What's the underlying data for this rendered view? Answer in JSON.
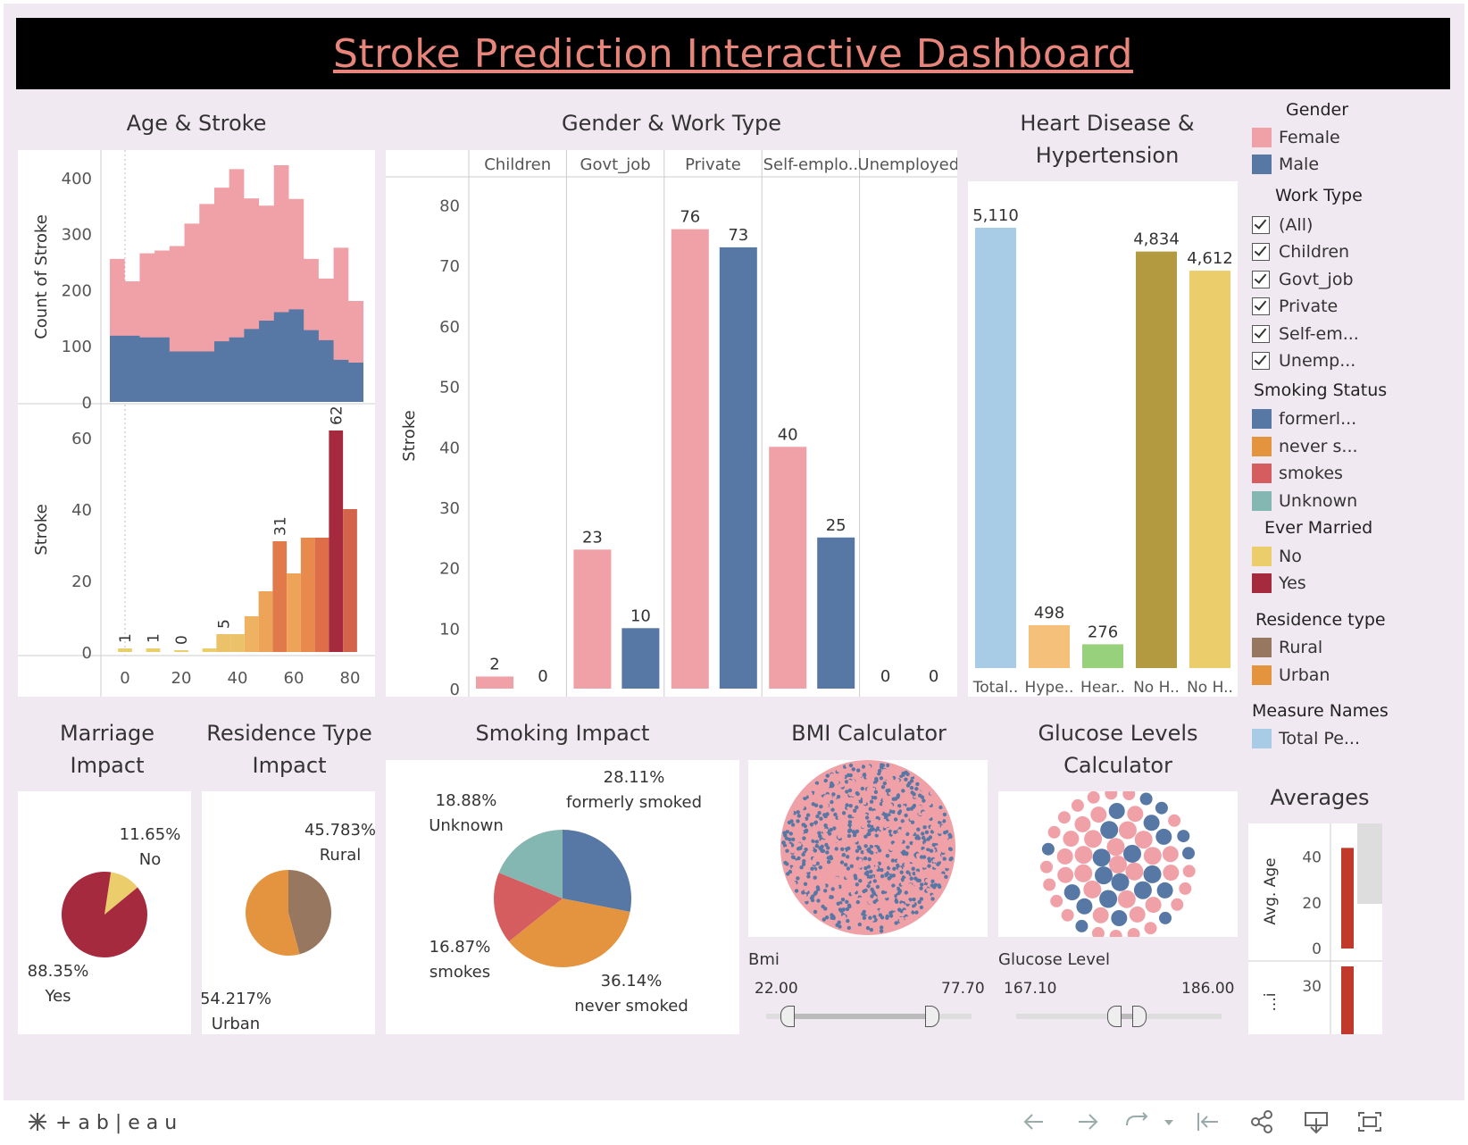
{
  "title": "Stroke Prediction Interactive Dashboard",
  "headings": {
    "age_stroke": "Age & Stroke",
    "gender_work": "Gender & Work Type",
    "heart": "Heart Disease & Hypertension",
    "marriage": "Marriage Impact",
    "residence": "Residence Type Impact",
    "smoking": "Smoking Impact",
    "bmi": "BMI Calculator",
    "glucose": "Glucose Levels Calculator",
    "averages": "Averages"
  },
  "colors": {
    "female": "#f0a1a8",
    "male": "#5777a5",
    "formerly": "#5777a5",
    "never": "#e4943f",
    "smokes": "#d65d5f",
    "unknown": "#84b7b1",
    "married_no": "#ebce6b",
    "married_yes": "#a52a3e",
    "rural": "#987760",
    "urban": "#e4943f",
    "total": "#a8cbe6"
  },
  "legend": {
    "gender": {
      "title": "Gender",
      "items": [
        "Female",
        "Male"
      ]
    },
    "work": {
      "title": "Work Type",
      "items": [
        "(All)",
        "Children",
        "Govt_job",
        "Private",
        "Self-em...",
        "Unemp..."
      ]
    },
    "smoking": {
      "title": "Smoking Status",
      "items": [
        "formerl...",
        "never s...",
        "smokes",
        "Unknown"
      ]
    },
    "married": {
      "title": "Ever Married",
      "items": [
        "No",
        "Yes"
      ]
    },
    "residence": {
      "title": "Residence type",
      "items": [
        "Rural",
        "Urban"
      ]
    },
    "measure": {
      "title": "Measure Names",
      "items": [
        "Total Pe..."
      ]
    }
  },
  "bmi": {
    "label": "Bmi",
    "min": "22.00",
    "max": "77.70"
  },
  "glucose": {
    "label": "Glucose Level",
    "min": "167.10",
    "max": "186.00"
  },
  "brand": "+ a b | e a u",
  "chart_data": [
    {
      "id": "age-area",
      "type": "area",
      "ylabel": "Count of Stroke",
      "ylim": [
        0,
        430
      ],
      "yticks": [
        0,
        100,
        200,
        300,
        400
      ],
      "x": [
        0,
        5,
        10,
        15,
        20,
        25,
        30,
        35,
        40,
        45,
        50,
        55,
        60,
        65,
        70,
        75,
        80
      ],
      "series": [
        {
          "name": "Female",
          "values": [
            255,
            215,
            265,
            270,
            278,
            318,
            353,
            382,
            415,
            363,
            350,
            422,
            362,
            255,
            220,
            275,
            180
          ]
        },
        {
          "name": "Male",
          "values": [
            118,
            118,
            115,
            115,
            90,
            90,
            90,
            108,
            115,
            130,
            145,
            160,
            165,
            128,
            110,
            75,
            70
          ]
        }
      ]
    },
    {
      "id": "age-bars",
      "type": "bar",
      "ylabel": "Stroke",
      "ylim": [
        0,
        68
      ],
      "yticks": [
        0,
        20,
        40,
        60
      ],
      "xticks": [
        0,
        20,
        40,
        60,
        80
      ],
      "bins": [
        {
          "x": 0,
          "value": 1,
          "label": "1",
          "color": "#ebce6b"
        },
        {
          "x": 10,
          "value": 1,
          "label": "1",
          "color": "#ebce6b"
        },
        {
          "x": 20,
          "value": 0,
          "label": "0",
          "color": "#ebce6b"
        },
        {
          "x": 30,
          "value": 1,
          "label": "",
          "color": "#ebce6b"
        },
        {
          "x": 35,
          "value": 5,
          "label": "5",
          "color": "#ebc26a"
        },
        {
          "x": 40,
          "value": 5,
          "label": "",
          "color": "#ebc26a"
        },
        {
          "x": 45,
          "value": 10,
          "label": "",
          "color": "#eeb262"
        },
        {
          "x": 50,
          "value": 17,
          "label": "",
          "color": "#eea458"
        },
        {
          "x": 55,
          "value": 31,
          "label": "31",
          "color": "#e1794b"
        },
        {
          "x": 60,
          "value": 22,
          "label": "",
          "color": "#eea458"
        },
        {
          "x": 65,
          "value": 32,
          "label": "",
          "color": "#e8894e"
        },
        {
          "x": 70,
          "value": 32,
          "label": "",
          "color": "#de6d49"
        },
        {
          "x": 75,
          "value": 62,
          "label": "62",
          "color": "#a52a3e"
        },
        {
          "x": 80,
          "value": 40,
          "label": "",
          "color": "#d4634c"
        }
      ]
    },
    {
      "id": "gender-work",
      "type": "bar",
      "ylabel": "Stroke",
      "ylim": [
        0,
        82
      ],
      "yticks": [
        0,
        10,
        20,
        30,
        40,
        50,
        60,
        70,
        80
      ],
      "categories": [
        "Children",
        "Govt_job",
        "Private",
        "Self-emplo..",
        "Unemployed"
      ],
      "series": [
        {
          "name": "Female",
          "values": [
            2,
            23,
            76,
            40,
            0
          ]
        },
        {
          "name": "Male",
          "values": [
            0,
            10,
            73,
            25,
            0
          ]
        }
      ]
    },
    {
      "id": "heart",
      "type": "bar",
      "categories": [
        "Total..",
        "Hype..",
        "Hear..",
        "No H..",
        "No H.."
      ],
      "values": [
        5110,
        498,
        276,
        4834,
        4612
      ],
      "labels": [
        "5,110",
        "498",
        "276",
        "4,834",
        "4,612"
      ],
      "colors": [
        "#a8cbe6",
        "#f4c07a",
        "#98d17b",
        "#b3993f",
        "#ebce6b"
      ]
    },
    {
      "id": "marriage",
      "type": "pie",
      "slices": [
        {
          "name": "No",
          "value": 11.65,
          "label": "11.65%"
        },
        {
          "name": "Yes",
          "value": 88.35,
          "label": "88.35%"
        }
      ]
    },
    {
      "id": "residence",
      "type": "pie",
      "slices": [
        {
          "name": "Rural",
          "value": 45.783,
          "label": "45.783%"
        },
        {
          "name": "Urban",
          "value": 54.217,
          "label": "54.217%"
        }
      ]
    },
    {
      "id": "smoking",
      "type": "pie",
      "slices": [
        {
          "name": "formerly smoked",
          "value": 28.11,
          "label": "28.11%"
        },
        {
          "name": "never smoked",
          "value": 36.14,
          "label": "36.14%"
        },
        {
          "name": "smokes",
          "value": 16.87,
          "label": "16.87%"
        },
        {
          "name": "Unknown",
          "value": 18.88,
          "label": "18.88%"
        }
      ]
    },
    {
      "id": "averages",
      "type": "bar",
      "ylabel": "Avg. Age",
      "yticks": [
        0,
        20,
        40
      ],
      "ylim": [
        0,
        50
      ],
      "values": [
        44
      ],
      "second_ylabel": "...i",
      "second_ytick": "30"
    }
  ]
}
